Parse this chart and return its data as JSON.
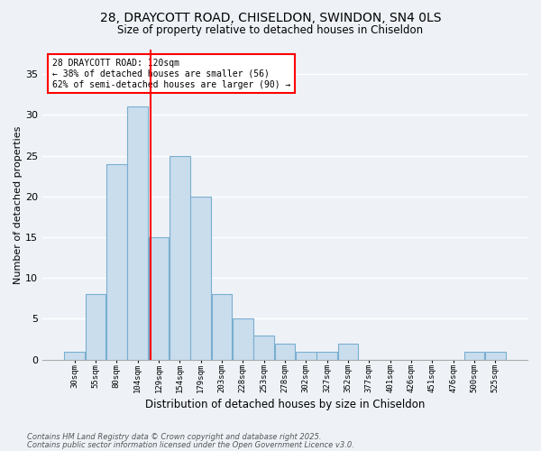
{
  "title_line1": "28, DRAYCOTT ROAD, CHISELDON, SWINDON, SN4 0LS",
  "title_line2": "Size of property relative to detached houses in Chiseldon",
  "xlabel": "Distribution of detached houses by size in Chiseldon",
  "ylabel": "Number of detached properties",
  "bin_labels": [
    "30sqm",
    "55sqm",
    "80sqm",
    "104sqm",
    "129sqm",
    "154sqm",
    "179sqm",
    "203sqm",
    "228sqm",
    "253sqm",
    "278sqm",
    "302sqm",
    "327sqm",
    "352sqm",
    "377sqm",
    "401sqm",
    "426sqm",
    "451sqm",
    "476sqm",
    "500sqm",
    "525sqm"
  ],
  "values": [
    1,
    8,
    24,
    31,
    15,
    25,
    20,
    8,
    5,
    3,
    2,
    1,
    1,
    2,
    0,
    0,
    0,
    0,
    0,
    1,
    1
  ],
  "bar_color": "#c9dded",
  "bar_edge_color": "#7aaed0",
  "vline_x": 4,
  "vline_color": "red",
  "annotation_text": "28 DRAYCOTT ROAD: 120sqm\n← 38% of detached houses are smaller (56)\n62% of semi-detached houses are larger (90) →",
  "annotation_box_color": "white",
  "annotation_box_edge": "red",
  "ylim": [
    0,
    38
  ],
  "yticks": [
    0,
    5,
    10,
    15,
    20,
    25,
    30,
    35
  ],
  "background_color": "#eef2f7",
  "grid_color": "white",
  "footer_line1": "Contains HM Land Registry data © Crown copyright and database right 2025.",
  "footer_line2": "Contains public sector information licensed under the Open Government Licence v3.0."
}
